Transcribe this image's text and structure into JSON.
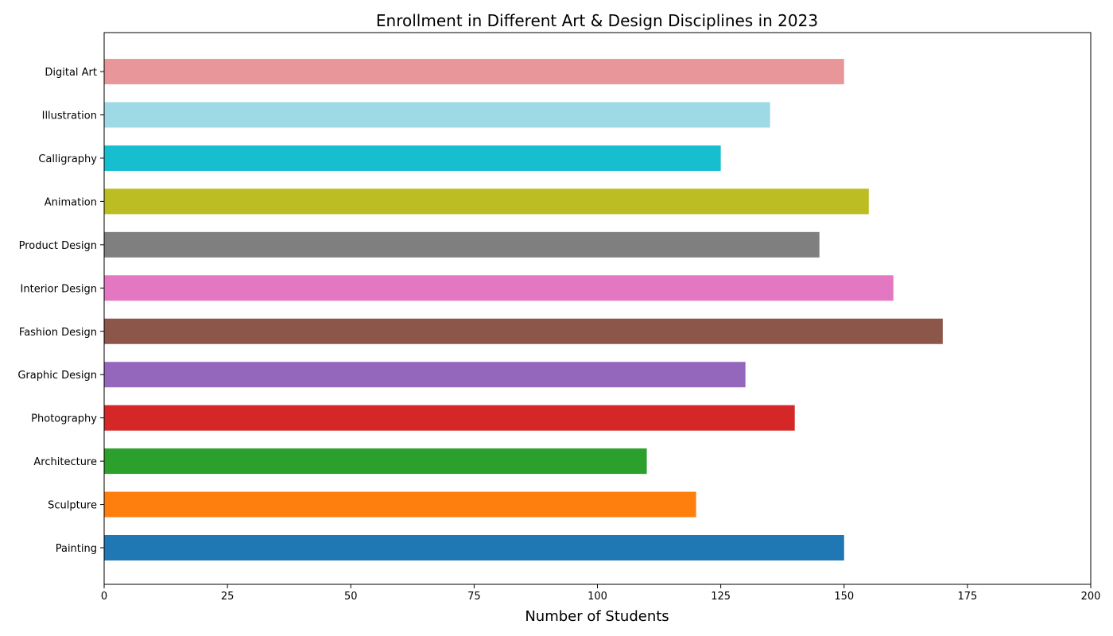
{
  "chart_data": {
    "type": "bar",
    "orientation": "horizontal",
    "title": "Enrollment in Different Art & Design Disciplines in 2023",
    "xlabel": "Number of Students",
    "ylabel": "",
    "xlim": [
      0,
      200
    ],
    "xticks": [
      0,
      25,
      50,
      75,
      100,
      125,
      150,
      175,
      200
    ],
    "grid": false,
    "categories": [
      "Painting",
      "Sculpture",
      "Architecture",
      "Photography",
      "Graphic Design",
      "Fashion Design",
      "Interior Design",
      "Product Design",
      "Animation",
      "Calligraphy",
      "Illustration",
      "Digital Art"
    ],
    "values": [
      150,
      120,
      110,
      140,
      130,
      170,
      160,
      145,
      155,
      125,
      135,
      150
    ],
    "colors": [
      "#1f77b4",
      "#ff7f0e",
      "#2ca02c",
      "#d62728",
      "#9467bd",
      "#8c564b",
      "#e377c2",
      "#7f7f7f",
      "#bcbd22",
      "#17becf",
      "#9edae5",
      "#e9969b"
    ]
  }
}
